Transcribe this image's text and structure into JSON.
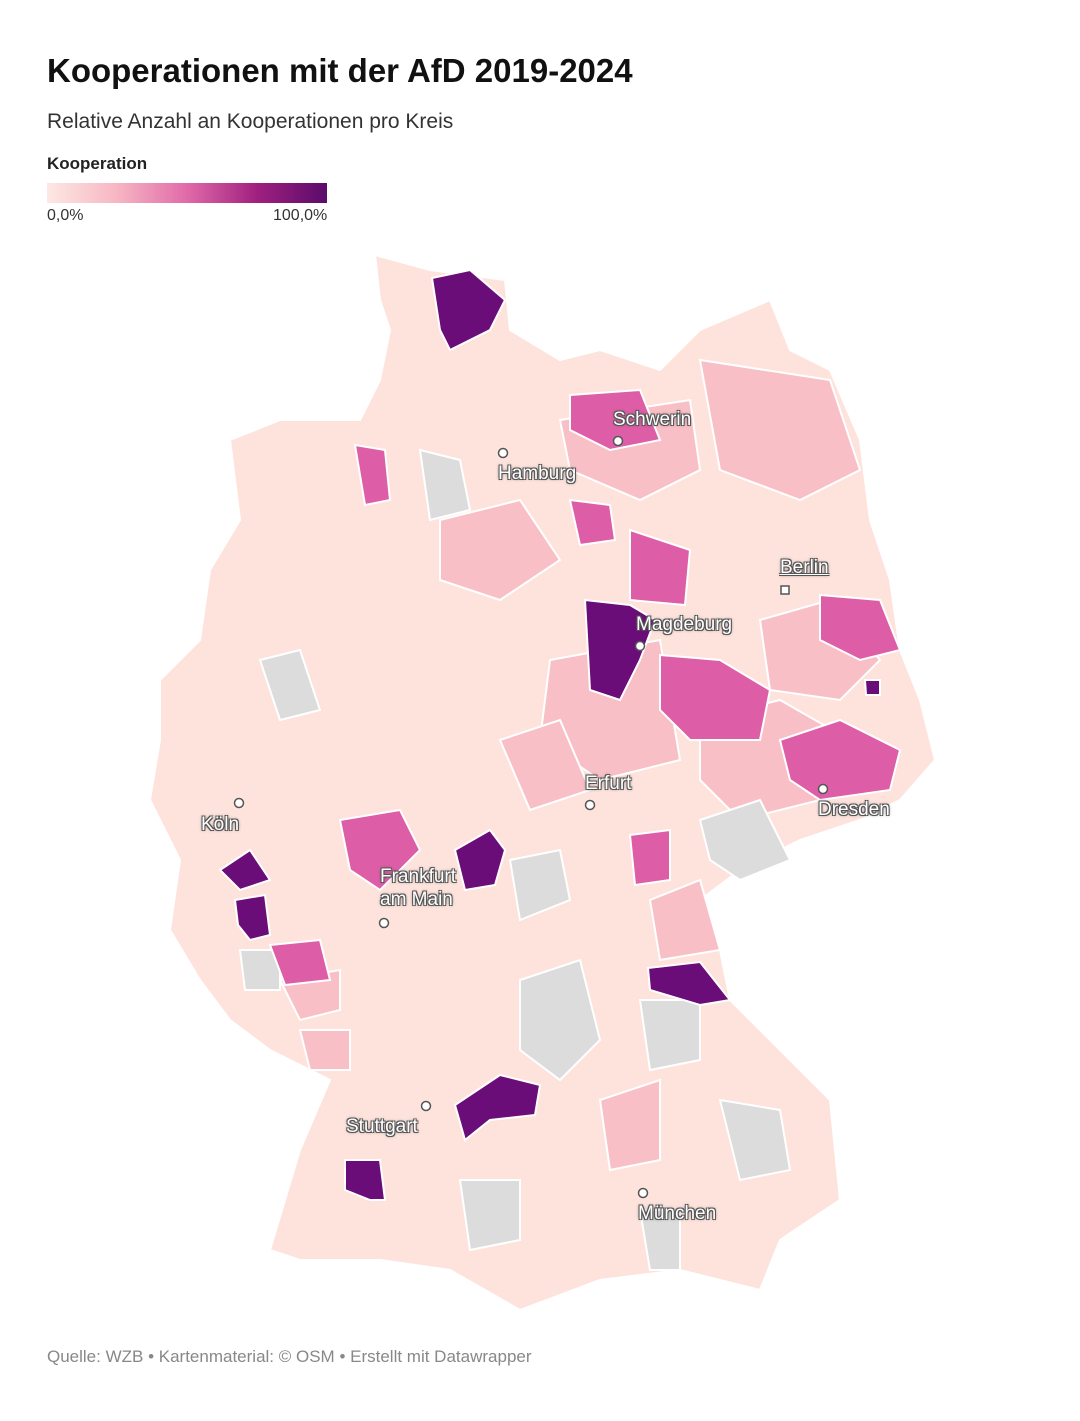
{
  "header": {
    "title": "Kooperationen mit der AfD 2019-2024",
    "subtitle": "Relative Anzahl an Kooperationen pro Kreis"
  },
  "legend": {
    "title": "Kooperation",
    "range": [
      0,
      100
    ],
    "ticks": [
      {
        "value": 0,
        "label": "0,0%"
      },
      {
        "value": 100,
        "label": "100,0%"
      }
    ]
  },
  "map": {
    "cities": [
      {
        "name": "Schwerin"
      },
      {
        "name": "Hamburg"
      },
      {
        "name": "Berlin"
      },
      {
        "name": "Magdeburg"
      },
      {
        "name": "Erfurt"
      },
      {
        "name": "Dresden"
      },
      {
        "name": "Köln"
      },
      {
        "name": "Frankfurt am Main"
      },
      {
        "name": "Stuttgart"
      },
      {
        "name": "München"
      }
    ]
  },
  "footer": {
    "source": "Quelle: WZB • Kartenmaterial: © OSM  • Erstellt mit Datawrapper"
  }
}
